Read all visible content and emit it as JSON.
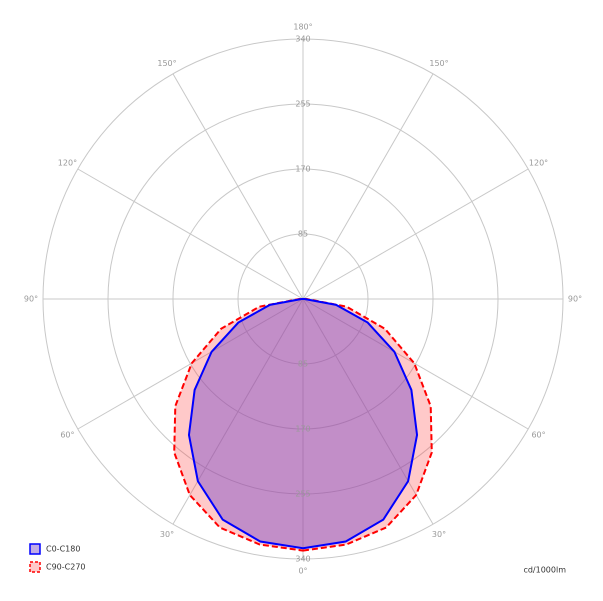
{
  "chart_data": {
    "type": "polar",
    "angles": [
      0,
      10,
      20,
      30,
      40,
      50,
      60,
      70,
      80,
      90
    ],
    "series": [
      {
        "name": "C90-C270",
        "color": "#ff0000",
        "dashed": true,
        "values": [
          329,
          326,
          318,
          296,
          262,
          218,
          168,
          114,
          58,
          5
        ]
      },
      {
        "name": "C0-C180",
        "color": "#0000ff",
        "dashed": false,
        "values": [
          326,
          322,
          307,
          275,
          232,
          185,
          138,
          90,
          44,
          2
        ]
      }
    ],
    "rlim": [
      0,
      340
    ],
    "rticks": [
      85,
      170,
      255,
      340
    ],
    "angleticks": [
      {
        "value": 0,
        "label": "0°"
      },
      {
        "value": 30,
        "label": "30°"
      },
      {
        "value": 60,
        "label": "60°"
      },
      {
        "value": 90,
        "label": "90°"
      },
      {
        "value": 120,
        "label": "120°"
      },
      {
        "value": 150,
        "label": "150°"
      },
      {
        "value": 180,
        "label": "180°"
      }
    ],
    "unit_label": "cd/1000lm"
  }
}
